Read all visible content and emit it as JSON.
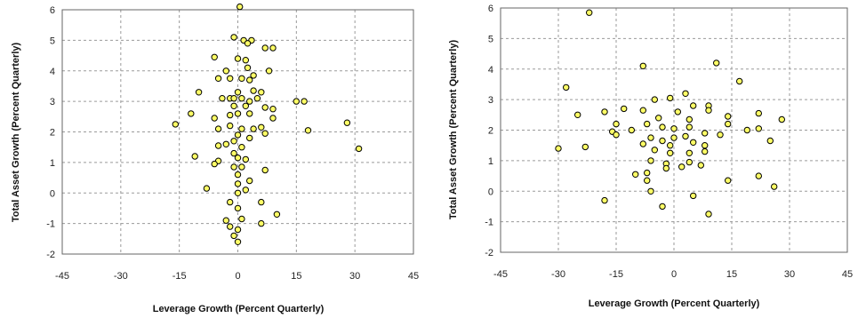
{
  "style": {
    "marker_fill": "#ffff66",
    "marker_stroke": "#000000",
    "grid_color": "#9a9a9a"
  },
  "chart_data": [
    {
      "type": "scatter",
      "xlabel": "Leverage Growth (Percent Quarterly)",
      "ylabel": "Total Asset Growth (Percent Quarterly)",
      "xlim": [
        -45,
        45
      ],
      "ylim": [
        -2,
        6
      ],
      "xticks": [
        "-45",
        "-30",
        "-15",
        "0",
        "15",
        "30",
        "45"
      ],
      "yticks": [
        "-2",
        "-1",
        "0",
        "1",
        "2",
        "3",
        "4",
        "5",
        "6"
      ],
      "grid": true,
      "points": [
        [
          0.5,
          6.1
        ],
        [
          -1,
          5.1
        ],
        [
          1.5,
          5.0
        ],
        [
          3.5,
          5.0
        ],
        [
          2.5,
          4.9
        ],
        [
          7,
          4.75
        ],
        [
          9,
          4.75
        ],
        [
          -6,
          4.45
        ],
        [
          0,
          4.4
        ],
        [
          2,
          4.35
        ],
        [
          2.5,
          4.1
        ],
        [
          -3,
          4.0
        ],
        [
          8,
          4.0
        ],
        [
          4,
          3.85
        ],
        [
          -5,
          3.75
        ],
        [
          -2,
          3.75
        ],
        [
          1,
          3.75
        ],
        [
          3,
          3.7
        ],
        [
          -10,
          3.3
        ],
        [
          0,
          3.3
        ],
        [
          4,
          3.35
        ],
        [
          6,
          3.3
        ],
        [
          -4,
          3.1
        ],
        [
          -2,
          3.1
        ],
        [
          -1,
          3.1
        ],
        [
          1,
          3.1
        ],
        [
          3,
          3.0
        ],
        [
          5,
          3.1
        ],
        [
          15,
          3.0
        ],
        [
          17,
          3.0
        ],
        [
          -1,
          2.85
        ],
        [
          2,
          2.85
        ],
        [
          -6,
          2.45
        ],
        [
          -2,
          2.55
        ],
        [
          0,
          2.6
        ],
        [
          3,
          2.6
        ],
        [
          7,
          2.8
        ],
        [
          9,
          2.75
        ],
        [
          -12,
          2.6
        ],
        [
          -16,
          2.25
        ],
        [
          -5,
          2.1
        ],
        [
          1,
          2.1
        ],
        [
          4,
          2.1
        ],
        [
          6,
          2.15
        ],
        [
          -2,
          2.2
        ],
        [
          9,
          2.45
        ],
        [
          28,
          2.3
        ],
        [
          18,
          2.05
        ],
        [
          7,
          1.95
        ],
        [
          0,
          1.9
        ],
        [
          3,
          1.8
        ],
        [
          -1,
          1.7
        ],
        [
          -3,
          1.6
        ],
        [
          -5,
          1.55
        ],
        [
          1,
          1.5
        ],
        [
          -1,
          1.3
        ],
        [
          0,
          1.15
        ],
        [
          2,
          1.1
        ],
        [
          31,
          1.45
        ],
        [
          -11,
          1.2
        ],
        [
          -5,
          1.05
        ],
        [
          -6,
          0.95
        ],
        [
          -1,
          0.85
        ],
        [
          1,
          0.85
        ],
        [
          0,
          0.6
        ],
        [
          7,
          0.75
        ],
        [
          3,
          0.4
        ],
        [
          -8,
          0.15
        ],
        [
          0,
          0.3
        ],
        [
          0,
          0.0
        ],
        [
          2,
          0.1
        ],
        [
          6,
          -0.3
        ],
        [
          -2,
          -0.3
        ],
        [
          0,
          -0.5
        ],
        [
          -3,
          -0.9
        ],
        [
          1,
          -0.85
        ],
        [
          10,
          -0.7
        ],
        [
          -2,
          -1.1
        ],
        [
          0,
          -1.2
        ],
        [
          6,
          -1.0
        ],
        [
          -1,
          -1.4
        ],
        [
          0,
          -1.6
        ]
      ]
    },
    {
      "type": "scatter",
      "xlabel": "Leverage Growth (Percent Quarterly)",
      "ylabel": "Total Asset Growth (Percent Quarterly)",
      "xlim": [
        -45,
        45
      ],
      "ylim": [
        -2,
        6
      ],
      "xticks": [
        "-45",
        "-30",
        "-15",
        "0",
        "15",
        "30",
        "45"
      ],
      "yticks": [
        "-2",
        "-1",
        "0",
        "1",
        "2",
        "3",
        "4",
        "5",
        "6"
      ],
      "grid": true,
      "points": [
        [
          -22,
          5.85
        ],
        [
          -8,
          4.1
        ],
        [
          11,
          4.2
        ],
        [
          17,
          3.6
        ],
        [
          -28,
          3.4
        ],
        [
          -1,
          3.05
        ],
        [
          3,
          3.2
        ],
        [
          -5,
          3.0
        ],
        [
          5,
          2.8
        ],
        [
          9,
          2.8
        ],
        [
          -25,
          2.5
        ],
        [
          -18,
          2.6
        ],
        [
          -13,
          2.7
        ],
        [
          -8,
          2.65
        ],
        [
          -4,
          2.4
        ],
        [
          1,
          2.6
        ],
        [
          4,
          2.35
        ],
        [
          9,
          2.65
        ],
        [
          14,
          2.45
        ],
        [
          22,
          2.55
        ],
        [
          28,
          2.35
        ],
        [
          -15,
          2.2
        ],
        [
          -7,
          2.2
        ],
        [
          -3,
          2.1
        ],
        [
          0,
          2.05
        ],
        [
          4,
          2.1
        ],
        [
          14,
          2.2
        ],
        [
          -16,
          1.95
        ],
        [
          -11,
          2.0
        ],
        [
          -6,
          1.75
        ],
        [
          -3,
          1.65
        ],
        [
          0,
          1.75
        ],
        [
          3,
          1.8
        ],
        [
          8,
          1.9
        ],
        [
          19,
          2.0
        ],
        [
          22,
          2.05
        ],
        [
          -15,
          1.85
        ],
        [
          -8,
          1.55
        ],
        [
          -1,
          1.5
        ],
        [
          5,
          1.6
        ],
        [
          8,
          1.5
        ],
        [
          -23,
          1.45
        ],
        [
          -30,
          1.4
        ],
        [
          -5,
          1.35
        ],
        [
          -1,
          1.25
        ],
        [
          4,
          1.25
        ],
        [
          8,
          1.3
        ],
        [
          12,
          1.85
        ],
        [
          25,
          1.65
        ],
        [
          -6,
          1.0
        ],
        [
          -2,
          0.9
        ],
        [
          4,
          0.95
        ],
        [
          7,
          0.85
        ],
        [
          -10,
          0.55
        ],
        [
          -7,
          0.6
        ],
        [
          2,
          0.8
        ],
        [
          -2,
          0.75
        ],
        [
          14,
          0.35
        ],
        [
          22,
          0.5
        ],
        [
          -6,
          0.0
        ],
        [
          26,
          0.15
        ],
        [
          -7,
          0.35
        ],
        [
          -18,
          -0.3
        ],
        [
          5,
          -0.15
        ],
        [
          -3,
          -0.5
        ],
        [
          9,
          -0.75
        ]
      ]
    }
  ]
}
